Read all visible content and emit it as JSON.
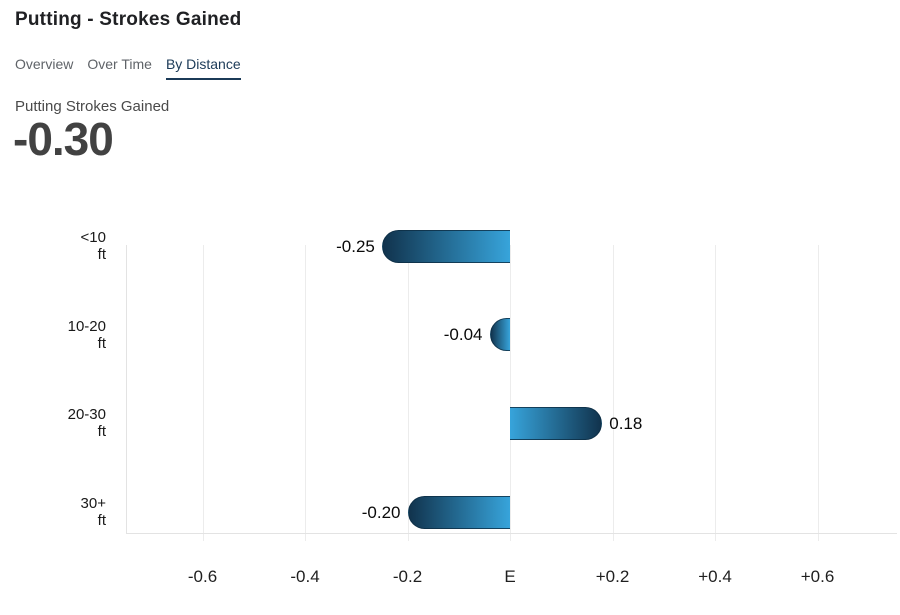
{
  "header": {
    "title": "Putting - Strokes Gained"
  },
  "tabs": [
    {
      "label": "Overview",
      "active": false
    },
    {
      "label": "Over Time",
      "active": false
    },
    {
      "label": "By Distance",
      "active": true
    }
  ],
  "summary": {
    "label": "Putting Strokes Gained",
    "value": "-0.30"
  },
  "colors": {
    "active_tab": "#1b3a57",
    "bar_dark": "#11334d",
    "bar_light": "#37a4db",
    "grid": "#ececec",
    "axis": "#e3e3e3"
  },
  "chart_data": {
    "type": "bar",
    "orientation": "horizontal",
    "categories": [
      {
        "range": "<10",
        "unit": "ft"
      },
      {
        "range": "10-20",
        "unit": "ft"
      },
      {
        "range": "20-30",
        "unit": "ft"
      },
      {
        "range": "30+",
        "unit": "ft"
      }
    ],
    "values": [
      -0.25,
      -0.04,
      0.18,
      -0.2
    ],
    "value_labels": [
      "-0.25",
      "-0.04",
      "0.18",
      "-0.20"
    ],
    "x_ticks": [
      {
        "value": -0.6,
        "label": "-0.6"
      },
      {
        "value": -0.4,
        "label": "-0.4"
      },
      {
        "value": -0.2,
        "label": "-0.2"
      },
      {
        "value": 0,
        "label": "E"
      },
      {
        "value": 0.2,
        "label": "+0.2"
      },
      {
        "value": 0.4,
        "label": "+0.4"
      },
      {
        "value": 0.6,
        "label": "+0.6"
      }
    ],
    "xlim": [
      -0.75,
      0.755
    ],
    "grid": true,
    "legend": false,
    "bar_gradient": {
      "tip": "#11334d",
      "axis_end": "#37a4db"
    }
  }
}
